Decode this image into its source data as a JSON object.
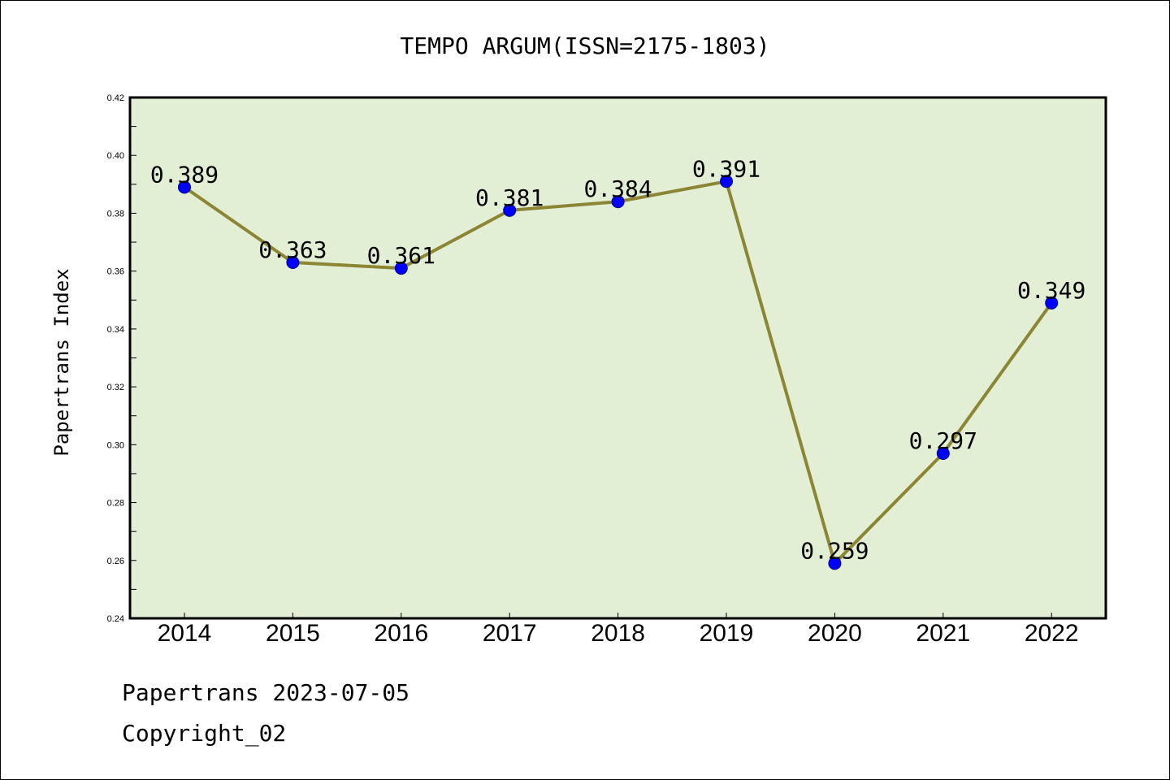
{
  "chart_data": {
    "type": "line",
    "title": "TEMPO ARGUM(ISSN=2175-1803)",
    "xlabel": "",
    "ylabel": "Papertrans Index",
    "categories": [
      "2014",
      "2015",
      "2016",
      "2017",
      "2018",
      "2019",
      "2020",
      "2021",
      "2022"
    ],
    "values": [
      0.389,
      0.363,
      0.361,
      0.381,
      0.384,
      0.391,
      0.259,
      0.297,
      0.349
    ],
    "data_labels": [
      "0.389",
      "0.363",
      "0.361",
      "0.381",
      "0.384",
      "0.391",
      "0.259",
      "0.297",
      "0.349"
    ],
    "ylim": [
      0.24,
      0.42
    ],
    "yticks": [
      "0.24",
      "0.26",
      "0.28",
      "0.30",
      "0.32",
      "0.34",
      "0.36",
      "0.38",
      "0.40",
      "0.42"
    ],
    "grid": false,
    "legend": "none",
    "colors": {
      "line": "#8b8534",
      "marker": "#0000ff",
      "plot_background": "#e2efd5",
      "axes": "#000000"
    }
  },
  "footer": {
    "line1": "Papertrans 2023-07-05",
    "line2": "Copyright_02"
  }
}
